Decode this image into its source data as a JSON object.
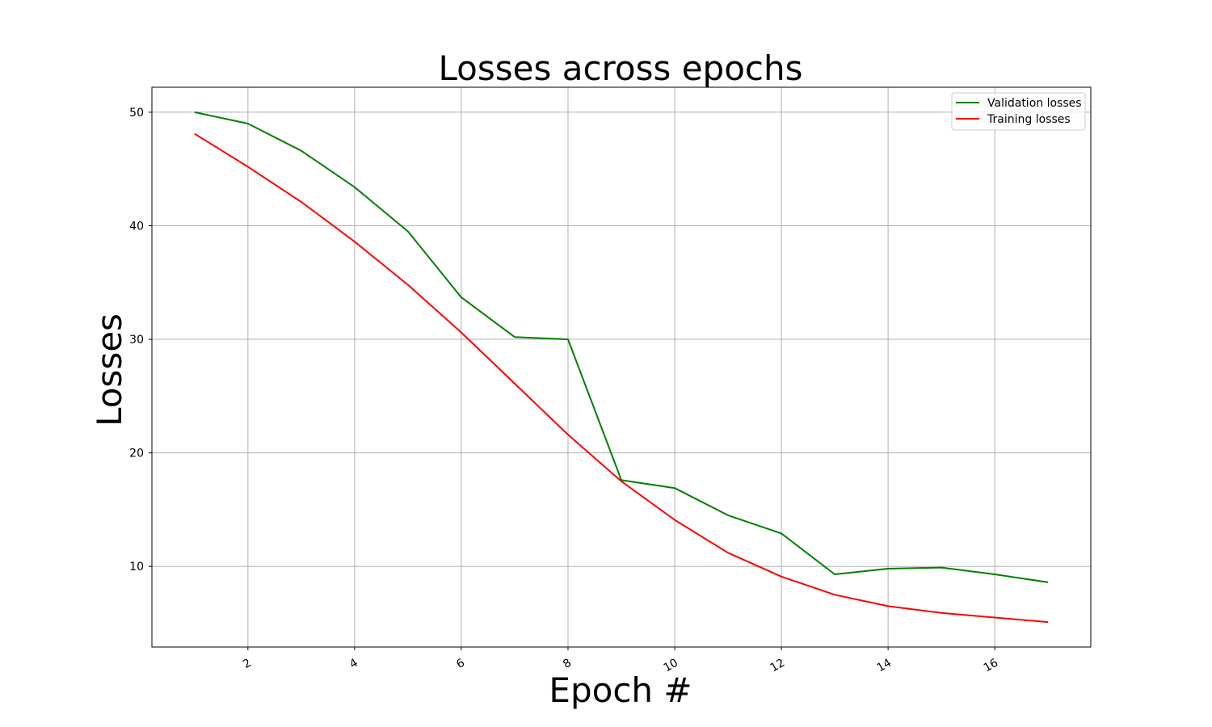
{
  "chart_data": {
    "type": "line",
    "title": "Losses across epochs",
    "xlabel": "Epoch #",
    "ylabel": "Losses",
    "xlim": [
      0.2,
      17.8
    ],
    "ylim": [
      2.9,
      52.2
    ],
    "x_ticks": [
      2,
      4,
      6,
      8,
      10,
      12,
      14,
      16
    ],
    "y_ticks": [
      10,
      20,
      30,
      40,
      50
    ],
    "x_tick_rotation_deg": 30,
    "grid": true,
    "legend_position": "top-right",
    "series": [
      {
        "name": "Validation losses",
        "color": "#008000",
        "x": [
          1,
          2,
          3,
          4,
          5,
          6,
          7,
          8,
          9,
          10,
          11,
          12,
          13,
          14,
          15,
          16,
          17
        ],
        "values": [
          50.0,
          49.0,
          46.6,
          43.4,
          39.5,
          33.7,
          30.2,
          30.0,
          17.6,
          16.9,
          14.5,
          12.9,
          9.3,
          9.8,
          9.9,
          9.3,
          8.6
        ]
      },
      {
        "name": "Training losses",
        "color": "#ff0000",
        "x": [
          1,
          2,
          3,
          4,
          5,
          6,
          7,
          8,
          9,
          10,
          11,
          12,
          13,
          14,
          15,
          16,
          17
        ],
        "values": [
          48.1,
          45.2,
          42.1,
          38.6,
          34.8,
          30.6,
          26.1,
          21.6,
          17.5,
          14.1,
          11.2,
          9.1,
          7.5,
          6.5,
          5.9,
          5.5,
          5.1
        ]
      }
    ]
  }
}
